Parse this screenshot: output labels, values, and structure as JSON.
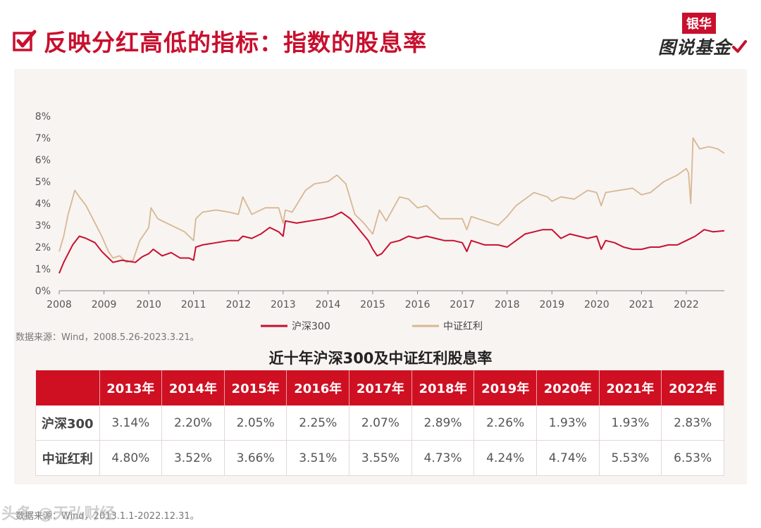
{
  "header": {
    "title": "反映分红高低的指标：指数的股息率",
    "brand_top": "银华",
    "brand_bottom": "图说基金"
  },
  "colors": {
    "brand": "#c8102e",
    "hs300": "#c8102e",
    "dividend": "#d7b892"
  },
  "chart_data": {
    "type": "line",
    "title": "",
    "xlabel": "",
    "ylabel": "",
    "x_ticks": [
      "2008",
      "2009",
      "2010",
      "2011",
      "2012",
      "2013",
      "2014",
      "2015",
      "2016",
      "2017",
      "2018",
      "2019",
      "2020",
      "2021",
      "2022"
    ],
    "y_ticks": [
      "0%",
      "1%",
      "2%",
      "3%",
      "4%",
      "5%",
      "6%",
      "7%",
      "8%"
    ],
    "ylim": [
      0,
      8
    ],
    "xlim": [
      2008.0,
      2022.85
    ],
    "legend_position": "bottom-center",
    "grid": false,
    "series": [
      {
        "name": "沪深300",
        "color": "#c8102e",
        "points": [
          [
            2008.0,
            0.8
          ],
          [
            2008.1,
            1.3
          ],
          [
            2008.3,
            2.1
          ],
          [
            2008.45,
            2.5
          ],
          [
            2008.6,
            2.4
          ],
          [
            2008.8,
            2.2
          ],
          [
            2008.95,
            1.8
          ],
          [
            2009.1,
            1.5
          ],
          [
            2009.2,
            1.3
          ],
          [
            2009.4,
            1.4
          ],
          [
            2009.55,
            1.35
          ],
          [
            2009.7,
            1.3
          ],
          [
            2009.85,
            1.55
          ],
          [
            2010.0,
            1.7
          ],
          [
            2010.1,
            1.9
          ],
          [
            2010.3,
            1.6
          ],
          [
            2010.5,
            1.75
          ],
          [
            2010.7,
            1.5
          ],
          [
            2010.9,
            1.5
          ],
          [
            2011.0,
            1.4
          ],
          [
            2011.05,
            2.0
          ],
          [
            2011.2,
            2.1
          ],
          [
            2011.5,
            2.2
          ],
          [
            2011.8,
            2.3
          ],
          [
            2012.0,
            2.3
          ],
          [
            2012.1,
            2.5
          ],
          [
            2012.3,
            2.4
          ],
          [
            2012.5,
            2.6
          ],
          [
            2012.7,
            2.9
          ],
          [
            2012.9,
            2.7
          ],
          [
            2013.0,
            2.5
          ],
          [
            2013.05,
            3.2
          ],
          [
            2013.3,
            3.1
          ],
          [
            2013.6,
            3.2
          ],
          [
            2013.9,
            3.3
          ],
          [
            2014.1,
            3.4
          ],
          [
            2014.3,
            3.6
          ],
          [
            2014.5,
            3.3
          ],
          [
            2014.7,
            2.8
          ],
          [
            2014.9,
            2.3
          ],
          [
            2015.0,
            1.9
          ],
          [
            2015.1,
            1.6
          ],
          [
            2015.2,
            1.7
          ],
          [
            2015.4,
            2.2
          ],
          [
            2015.6,
            2.3
          ],
          [
            2015.8,
            2.5
          ],
          [
            2016.0,
            2.4
          ],
          [
            2016.2,
            2.5
          ],
          [
            2016.4,
            2.4
          ],
          [
            2016.6,
            2.3
          ],
          [
            2016.8,
            2.3
          ],
          [
            2017.0,
            2.2
          ],
          [
            2017.1,
            1.8
          ],
          [
            2017.2,
            2.3
          ],
          [
            2017.5,
            2.1
          ],
          [
            2017.8,
            2.1
          ],
          [
            2018.0,
            2.0
          ],
          [
            2018.2,
            2.3
          ],
          [
            2018.4,
            2.6
          ],
          [
            2018.6,
            2.7
          ],
          [
            2018.8,
            2.8
          ],
          [
            2019.0,
            2.8
          ],
          [
            2019.2,
            2.4
          ],
          [
            2019.4,
            2.6
          ],
          [
            2019.6,
            2.5
          ],
          [
            2019.8,
            2.4
          ],
          [
            2020.0,
            2.5
          ],
          [
            2020.1,
            1.9
          ],
          [
            2020.2,
            2.3
          ],
          [
            2020.4,
            2.2
          ],
          [
            2020.6,
            2.0
          ],
          [
            2020.8,
            1.9
          ],
          [
            2021.0,
            1.9
          ],
          [
            2021.2,
            2.0
          ],
          [
            2021.4,
            2.0
          ],
          [
            2021.6,
            2.1
          ],
          [
            2021.8,
            2.1
          ],
          [
            2022.0,
            2.3
          ],
          [
            2022.2,
            2.5
          ],
          [
            2022.4,
            2.8
          ],
          [
            2022.6,
            2.7
          ],
          [
            2022.85,
            2.75
          ]
        ]
      },
      {
        "name": "中证红利",
        "color": "#d7b892",
        "points": [
          [
            2008.0,
            1.8
          ],
          [
            2008.1,
            2.5
          ],
          [
            2008.2,
            3.5
          ],
          [
            2008.35,
            4.6
          ],
          [
            2008.45,
            4.3
          ],
          [
            2008.6,
            3.9
          ],
          [
            2008.8,
            3.1
          ],
          [
            2008.95,
            2.5
          ],
          [
            2009.1,
            1.8
          ],
          [
            2009.2,
            1.5
          ],
          [
            2009.35,
            1.6
          ],
          [
            2009.5,
            1.3
          ],
          [
            2009.65,
            1.4
          ],
          [
            2009.8,
            2.3
          ],
          [
            2010.0,
            2.9
          ],
          [
            2010.05,
            3.8
          ],
          [
            2010.2,
            3.3
          ],
          [
            2010.4,
            3.1
          ],
          [
            2010.6,
            2.9
          ],
          [
            2010.8,
            2.7
          ],
          [
            2011.0,
            2.3
          ],
          [
            2011.05,
            3.3
          ],
          [
            2011.2,
            3.6
          ],
          [
            2011.5,
            3.7
          ],
          [
            2011.8,
            3.6
          ],
          [
            2012.0,
            3.5
          ],
          [
            2012.1,
            4.3
          ],
          [
            2012.3,
            3.5
          ],
          [
            2012.6,
            3.8
          ],
          [
            2012.9,
            3.8
          ],
          [
            2013.0,
            3.1
          ],
          [
            2013.05,
            3.7
          ],
          [
            2013.2,
            3.6
          ],
          [
            2013.5,
            4.6
          ],
          [
            2013.7,
            4.9
          ],
          [
            2014.0,
            5.0
          ],
          [
            2014.2,
            5.3
          ],
          [
            2014.4,
            4.9
          ],
          [
            2014.6,
            3.5
          ],
          [
            2014.8,
            3.1
          ],
          [
            2015.0,
            2.6
          ],
          [
            2015.15,
            3.7
          ],
          [
            2015.3,
            3.2
          ],
          [
            2015.6,
            4.3
          ],
          [
            2015.8,
            4.2
          ],
          [
            2016.0,
            3.8
          ],
          [
            2016.2,
            3.9
          ],
          [
            2016.5,
            3.3
          ],
          [
            2016.8,
            3.3
          ],
          [
            2017.0,
            3.3
          ],
          [
            2017.1,
            2.8
          ],
          [
            2017.2,
            3.4
          ],
          [
            2017.5,
            3.2
          ],
          [
            2017.8,
            3.0
          ],
          [
            2018.0,
            3.4
          ],
          [
            2018.2,
            3.9
          ],
          [
            2018.4,
            4.2
          ],
          [
            2018.6,
            4.5
          ],
          [
            2018.9,
            4.3
          ],
          [
            2019.0,
            4.1
          ],
          [
            2019.2,
            4.3
          ],
          [
            2019.5,
            4.2
          ],
          [
            2019.8,
            4.6
          ],
          [
            2020.0,
            4.5
          ],
          [
            2020.1,
            3.9
          ],
          [
            2020.2,
            4.5
          ],
          [
            2020.5,
            4.6
          ],
          [
            2020.8,
            4.7
          ],
          [
            2021.0,
            4.4
          ],
          [
            2021.2,
            4.5
          ],
          [
            2021.5,
            5.0
          ],
          [
            2021.8,
            5.3
          ],
          [
            2022.0,
            5.6
          ],
          [
            2022.05,
            5.4
          ],
          [
            2022.1,
            4.0
          ],
          [
            2022.15,
            7.0
          ],
          [
            2022.3,
            6.5
          ],
          [
            2022.5,
            6.6
          ],
          [
            2022.7,
            6.5
          ],
          [
            2022.85,
            6.3
          ]
        ]
      }
    ],
    "source": "数据来源：Wind，2008.5.26-2023.3.21。"
  },
  "table": {
    "title": "近十年沪深300及中证红利股息率",
    "headers": [
      "",
      "2013年",
      "2014年",
      "2015年",
      "2016年",
      "2017年",
      "2018年",
      "2019年",
      "2020年",
      "2021年",
      "2022年"
    ],
    "rows": [
      {
        "label": "沪深300",
        "values": [
          "3.14%",
          "2.20%",
          "2.05%",
          "2.25%",
          "2.07%",
          "2.89%",
          "2.26%",
          "1.93%",
          "1.93%",
          "2.83%"
        ]
      },
      {
        "label": "中证红利",
        "values": [
          "4.80%",
          "3.52%",
          "3.66%",
          "3.51%",
          "3.55%",
          "4.73%",
          "4.24%",
          "4.74%",
          "5.53%",
          "6.53%"
        ]
      }
    ],
    "source": "数据来源：Wind，2013.1.1-2022.12.31。"
  },
  "watermark": "头条 @天弘财经"
}
